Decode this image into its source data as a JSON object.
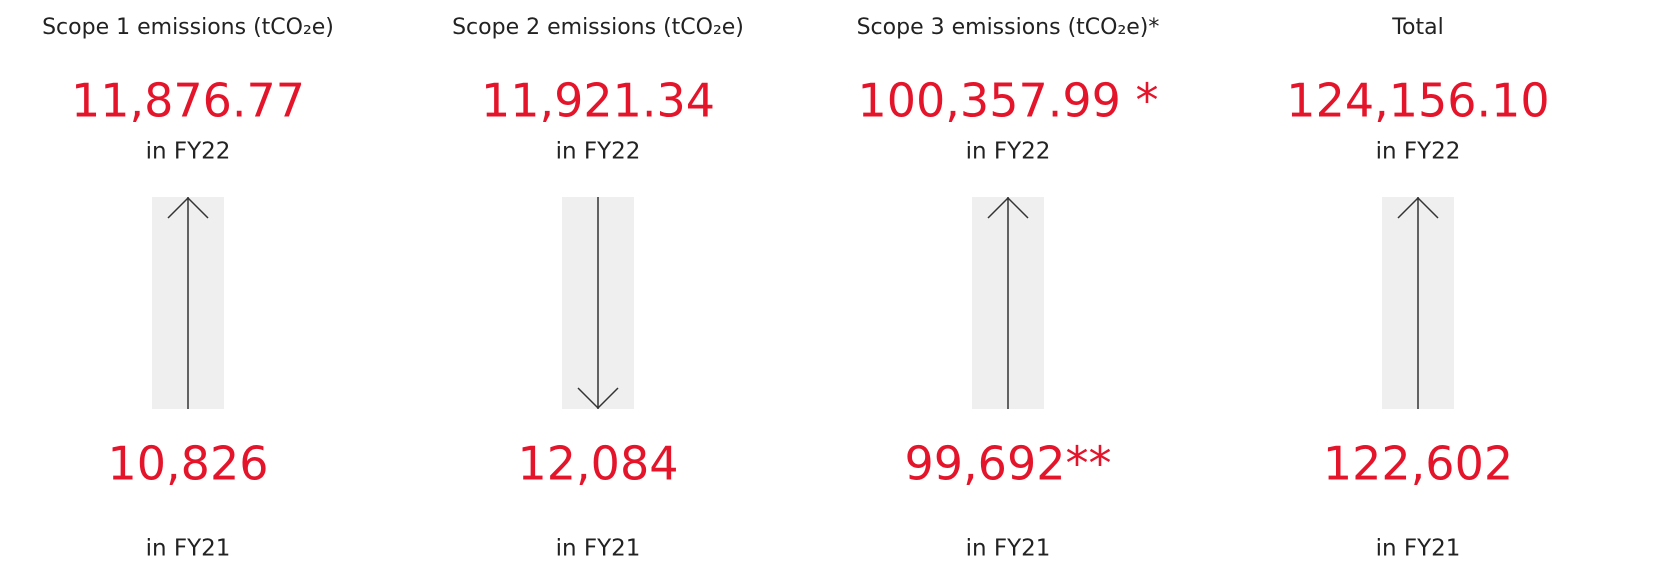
{
  "columns": [
    {
      "title": "Scope 1 emissions (tCO₂e)",
      "current": "11,876.77",
      "current_period": "in FY22",
      "previous": "10,826",
      "previous_period": "in FY21",
      "arrow": "up"
    },
    {
      "title": "Scope 2 emissions (tCO₂e)",
      "current": "11,921.34",
      "current_period": "in FY22",
      "previous": "12,084",
      "previous_period": "in FY21",
      "arrow": "down"
    },
    {
      "title": "Scope 3 emissions (tCO₂e)*",
      "current": "100,357.99 *",
      "current_period": "in FY22",
      "previous": "99,692**",
      "previous_period": "in FY21",
      "arrow": "up"
    },
    {
      "title": "Total",
      "current": "124,156.10",
      "current_period": "in FY22",
      "previous": "122,602",
      "previous_period": "in FY21",
      "arrow": "up"
    }
  ]
}
